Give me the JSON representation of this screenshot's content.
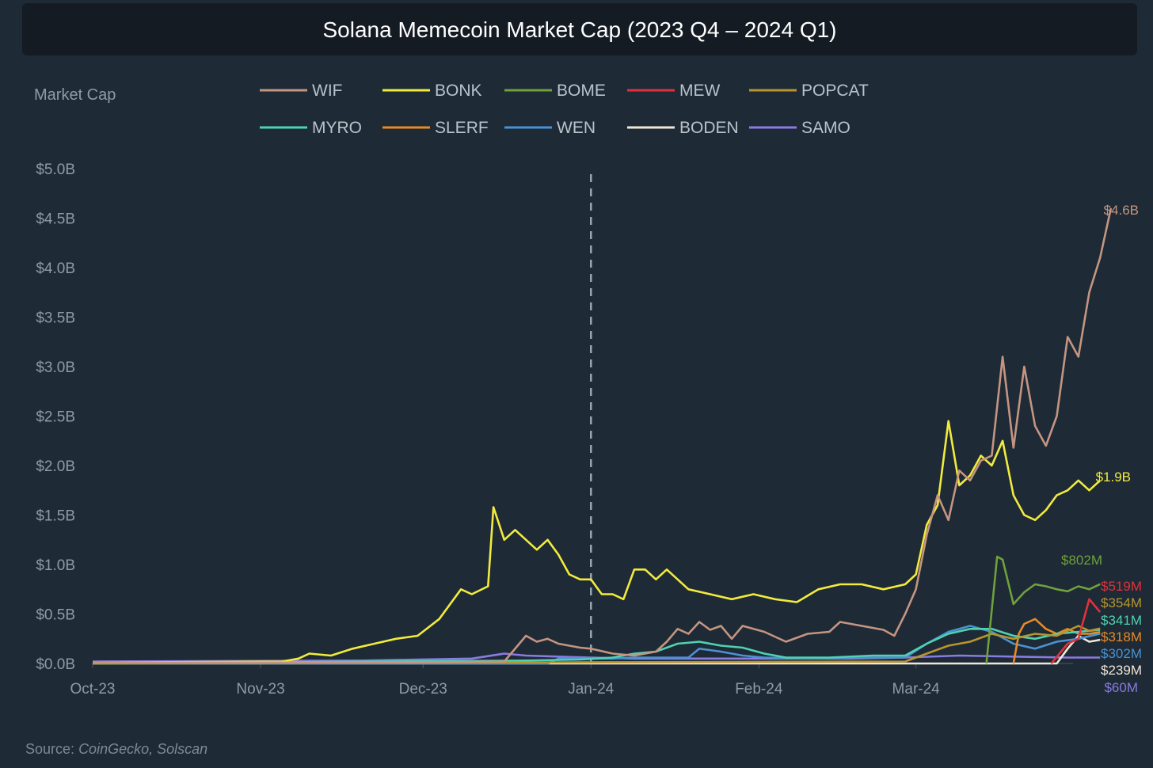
{
  "chart_data": {
    "type": "line",
    "title": "Solana Memecoin Market Cap (2023 Q4 – 2024 Q1)",
    "ylabel": "Market Cap",
    "xlabel": "",
    "x_ticks": [
      "Oct-23",
      "Nov-23",
      "Dec-23",
      "Jan-24",
      "Feb-24",
      "Mar-24"
    ],
    "x_tick_days": [
      0,
      31,
      61,
      92,
      123,
      152
    ],
    "x_range": [
      0,
      181
    ],
    "ylim": [
      0,
      5.0
    ],
    "y_ticks": [
      0,
      0.5,
      1.0,
      1.5,
      2.0,
      2.5,
      3.0,
      3.5,
      4.0,
      4.5,
      5.0
    ],
    "y_tick_labels": [
      "$0.0B",
      "$0.5B",
      "$1.0B",
      "$1.5B",
      "$2.0B",
      "$2.5B",
      "$3.0B",
      "$3.5B",
      "$4.0B",
      "$4.5B",
      "$5.0B"
    ],
    "unit_note": "values in $B; x values are days since 2023-10-01",
    "reference_line": {
      "x": 92,
      "style": "dashed"
    },
    "legend_position": "top",
    "series": [
      {
        "name": "WIF",
        "color": "#c49581",
        "end_label": "$4.6B",
        "points": [
          [
            0,
            0.01
          ],
          [
            60,
            0.01
          ],
          [
            76,
            0.02
          ],
          [
            80,
            0.28
          ],
          [
            82,
            0.22
          ],
          [
            84,
            0.25
          ],
          [
            86,
            0.2
          ],
          [
            90,
            0.16
          ],
          [
            92,
            0.15
          ],
          [
            96,
            0.1
          ],
          [
            100,
            0.08
          ],
          [
            104,
            0.12
          ],
          [
            106,
            0.22
          ],
          [
            108,
            0.35
          ],
          [
            110,
            0.3
          ],
          [
            112,
            0.42
          ],
          [
            114,
            0.34
          ],
          [
            116,
            0.38
          ],
          [
            118,
            0.25
          ],
          [
            120,
            0.38
          ],
          [
            124,
            0.32
          ],
          [
            128,
            0.22
          ],
          [
            132,
            0.3
          ],
          [
            136,
            0.32
          ],
          [
            138,
            0.42
          ],
          [
            142,
            0.38
          ],
          [
            146,
            0.34
          ],
          [
            148,
            0.28
          ],
          [
            150,
            0.5
          ],
          [
            152,
            0.75
          ],
          [
            154,
            1.3
          ],
          [
            156,
            1.7
          ],
          [
            158,
            1.45
          ],
          [
            160,
            1.95
          ],
          [
            162,
            1.85
          ],
          [
            164,
            2.05
          ],
          [
            166,
            2.1
          ],
          [
            168,
            3.1
          ],
          [
            170,
            2.18
          ],
          [
            172,
            3.0
          ],
          [
            174,
            2.4
          ],
          [
            176,
            2.2
          ],
          [
            178,
            2.5
          ],
          [
            180,
            3.3
          ],
          [
            182,
            3.1
          ],
          [
            184,
            3.75
          ],
          [
            186,
            4.1
          ],
          [
            188,
            4.6
          ]
        ]
      },
      {
        "name": "BONK",
        "color": "#f2eb3d",
        "end_label": "$1.9B",
        "points": [
          [
            0,
            0.01
          ],
          [
            35,
            0.02
          ],
          [
            38,
            0.05
          ],
          [
            40,
            0.1
          ],
          [
            44,
            0.08
          ],
          [
            48,
            0.15
          ],
          [
            52,
            0.2
          ],
          [
            56,
            0.25
          ],
          [
            60,
            0.28
          ],
          [
            64,
            0.45
          ],
          [
            68,
            0.75
          ],
          [
            70,
            0.7
          ],
          [
            73,
            0.78
          ],
          [
            74,
            1.58
          ],
          [
            76,
            1.25
          ],
          [
            78,
            1.35
          ],
          [
            82,
            1.15
          ],
          [
            84,
            1.25
          ],
          [
            86,
            1.1
          ],
          [
            88,
            0.9
          ],
          [
            90,
            0.85
          ],
          [
            92,
            0.85
          ],
          [
            94,
            0.7
          ],
          [
            96,
            0.7
          ],
          [
            98,
            0.65
          ],
          [
            100,
            0.95
          ],
          [
            102,
            0.95
          ],
          [
            104,
            0.85
          ],
          [
            106,
            0.95
          ],
          [
            110,
            0.75
          ],
          [
            114,
            0.7
          ],
          [
            118,
            0.65
          ],
          [
            122,
            0.7
          ],
          [
            126,
            0.65
          ],
          [
            130,
            0.62
          ],
          [
            134,
            0.75
          ],
          [
            138,
            0.8
          ],
          [
            142,
            0.8
          ],
          [
            146,
            0.75
          ],
          [
            150,
            0.8
          ],
          [
            152,
            0.9
          ],
          [
            154,
            1.4
          ],
          [
            156,
            1.6
          ],
          [
            158,
            2.45
          ],
          [
            160,
            1.8
          ],
          [
            162,
            1.9
          ],
          [
            164,
            2.1
          ],
          [
            166,
            2.0
          ],
          [
            168,
            2.25
          ],
          [
            170,
            1.7
          ],
          [
            172,
            1.5
          ],
          [
            174,
            1.45
          ],
          [
            176,
            1.55
          ],
          [
            178,
            1.7
          ],
          [
            180,
            1.75
          ],
          [
            182,
            1.85
          ],
          [
            184,
            1.75
          ],
          [
            186,
            1.85
          ]
        ]
      },
      {
        "name": "BOME",
        "color": "#6fa13c",
        "end_label": "$802M",
        "points": [
          [
            165,
            0.0
          ],
          [
            167,
            1.08
          ],
          [
            168,
            1.05
          ],
          [
            170,
            0.6
          ],
          [
            172,
            0.72
          ],
          [
            174,
            0.8
          ],
          [
            176,
            0.78
          ],
          [
            178,
            0.75
          ],
          [
            180,
            0.73
          ],
          [
            182,
            0.78
          ],
          [
            184,
            0.75
          ],
          [
            186,
            0.802
          ]
        ]
      },
      {
        "name": "MEW",
        "color": "#e0323c",
        "end_label": "$519M",
        "points": [
          [
            177,
            0.0
          ],
          [
            180,
            0.2
          ],
          [
            182,
            0.25
          ],
          [
            184,
            0.65
          ],
          [
            186,
            0.519
          ]
        ]
      },
      {
        "name": "POPCAT",
        "color": "#b8952e",
        "end_label": "$354M",
        "points": [
          [
            0,
            0.0
          ],
          [
            150,
            0.02
          ],
          [
            154,
            0.1
          ],
          [
            158,
            0.18
          ],
          [
            162,
            0.22
          ],
          [
            166,
            0.3
          ],
          [
            170,
            0.25
          ],
          [
            174,
            0.3
          ],
          [
            178,
            0.28
          ],
          [
            182,
            0.38
          ],
          [
            184,
            0.33
          ],
          [
            186,
            0.354
          ]
        ]
      },
      {
        "name": "MYRO",
        "color": "#4fd2b0",
        "end_label": "$341M",
        "points": [
          [
            0,
            0.0
          ],
          [
            80,
            0.03
          ],
          [
            90,
            0.04
          ],
          [
            96,
            0.06
          ],
          [
            100,
            0.1
          ],
          [
            104,
            0.12
          ],
          [
            108,
            0.2
          ],
          [
            112,
            0.22
          ],
          [
            116,
            0.18
          ],
          [
            120,
            0.16
          ],
          [
            124,
            0.1
          ],
          [
            128,
            0.06
          ],
          [
            136,
            0.06
          ],
          [
            144,
            0.08
          ],
          [
            150,
            0.08
          ],
          [
            154,
            0.2
          ],
          [
            158,
            0.3
          ],
          [
            162,
            0.35
          ],
          [
            166,
            0.35
          ],
          [
            170,
            0.28
          ],
          [
            174,
            0.25
          ],
          [
            178,
            0.3
          ],
          [
            182,
            0.32
          ],
          [
            186,
            0.341
          ]
        ]
      },
      {
        "name": "SLERF",
        "color": "#e88a26",
        "end_label": "$318M",
        "points": [
          [
            170,
            0.0
          ],
          [
            171,
            0.3
          ],
          [
            172,
            0.4
          ],
          [
            174,
            0.45
          ],
          [
            176,
            0.35
          ],
          [
            178,
            0.3
          ],
          [
            180,
            0.35
          ],
          [
            182,
            0.3
          ],
          [
            184,
            0.3
          ],
          [
            186,
            0.318
          ]
        ]
      },
      {
        "name": "WEN",
        "color": "#4a92d2",
        "end_label": "$302M",
        "points": [
          [
            0,
            0.0
          ],
          [
            84,
            0.0
          ],
          [
            86,
            0.05
          ],
          [
            96,
            0.05
          ],
          [
            100,
            0.06
          ],
          [
            110,
            0.06
          ],
          [
            112,
            0.15
          ],
          [
            116,
            0.12
          ],
          [
            120,
            0.08
          ],
          [
            124,
            0.06
          ],
          [
            132,
            0.05
          ],
          [
            140,
            0.06
          ],
          [
            150,
            0.06
          ],
          [
            154,
            0.2
          ],
          [
            158,
            0.32
          ],
          [
            162,
            0.38
          ],
          [
            166,
            0.32
          ],
          [
            170,
            0.2
          ],
          [
            174,
            0.15
          ],
          [
            178,
            0.22
          ],
          [
            182,
            0.25
          ],
          [
            186,
            0.302
          ]
        ]
      },
      {
        "name": "BODEN",
        "color": "#f0e6d8",
        "end_label": "$239M",
        "points": [
          [
            0,
            0.0
          ],
          [
            178,
            0.0
          ],
          [
            180,
            0.15
          ],
          [
            182,
            0.28
          ],
          [
            184,
            0.22
          ],
          [
            186,
            0.239
          ]
        ]
      },
      {
        "name": "SAMO",
        "color": "#8a7be0",
        "end_label": "$60M",
        "points": [
          [
            0,
            0.02
          ],
          [
            50,
            0.03
          ],
          [
            60,
            0.04
          ],
          [
            70,
            0.05
          ],
          [
            76,
            0.1
          ],
          [
            80,
            0.08
          ],
          [
            86,
            0.07
          ],
          [
            92,
            0.06
          ],
          [
            100,
            0.05
          ],
          [
            120,
            0.05
          ],
          [
            140,
            0.05
          ],
          [
            150,
            0.06
          ],
          [
            160,
            0.08
          ],
          [
            170,
            0.07
          ],
          [
            180,
            0.06
          ],
          [
            186,
            0.06
          ]
        ]
      }
    ]
  },
  "source": {
    "label": "Source:",
    "text": "CoinGecko, Solscan"
  }
}
